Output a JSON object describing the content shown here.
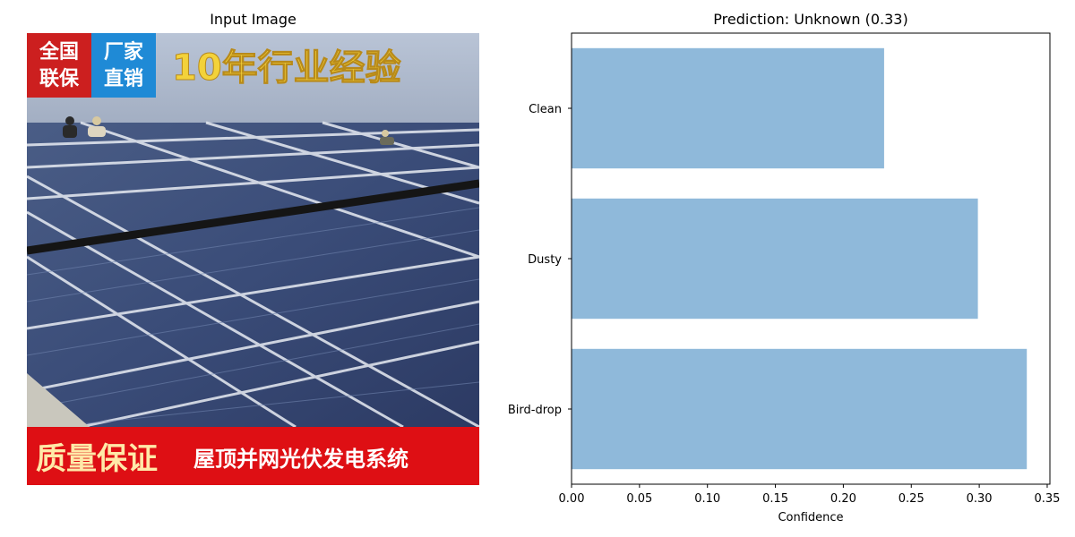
{
  "image_panel": {
    "title": "Input Image",
    "banner_top_left_1": "全国",
    "banner_top_left_2": "联保",
    "banner_top_mid_1": "厂家",
    "banner_top_mid_2": "直销",
    "banner_top_right": "10年行业经验",
    "banner_bottom_left": "质量保证",
    "banner_bottom_right": "屋顶并网光伏发电系统"
  },
  "chart_data": {
    "type": "bar",
    "orientation": "horizontal",
    "title": "Prediction: Unknown (0.33)",
    "xlabel": "Confidence",
    "ylabel": "",
    "categories": [
      "Clean",
      "Dusty",
      "Bird-drop"
    ],
    "values": [
      0.23,
      0.299,
      0.335
    ],
    "xlim": [
      0,
      0.352
    ],
    "xticks": [
      0.0,
      0.05,
      0.1,
      0.15,
      0.2,
      0.25,
      0.3,
      0.35
    ],
    "xtick_labels": [
      "0.00",
      "0.05",
      "0.10",
      "0.15",
      "0.20",
      "0.25",
      "0.30",
      "0.35"
    ],
    "bar_color": "#8fb9da",
    "grid": false
  }
}
